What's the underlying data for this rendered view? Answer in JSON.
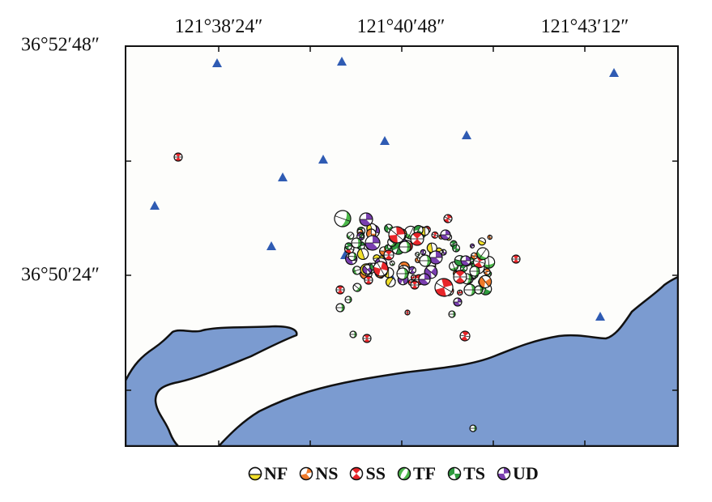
{
  "axes": {
    "x_ticks": [
      "121°38′24″",
      "121°40′48″",
      "121°43′12″"
    ],
    "y_ticks": [
      "36°52′48″",
      "36°50′24″"
    ]
  },
  "colors": {
    "sea": "#7b9bd0",
    "land": "#fdfdfb",
    "station": "#2f5bb3",
    "NF": "#f2e02a",
    "NS": "#f07a2a",
    "SS": "#e8262a",
    "TF": "#4cb84a",
    "TS": "#2e9a3e",
    "UD": "#7a3fb0"
  },
  "legend": [
    {
      "code": "NF",
      "label": "NF"
    },
    {
      "code": "NS",
      "label": "NS"
    },
    {
      "code": "SS",
      "label": "SS"
    },
    {
      "code": "TF",
      "label": "TF"
    },
    {
      "code": "TS",
      "label": "TS"
    },
    {
      "code": "UD",
      "label": "UD"
    }
  ]
}
